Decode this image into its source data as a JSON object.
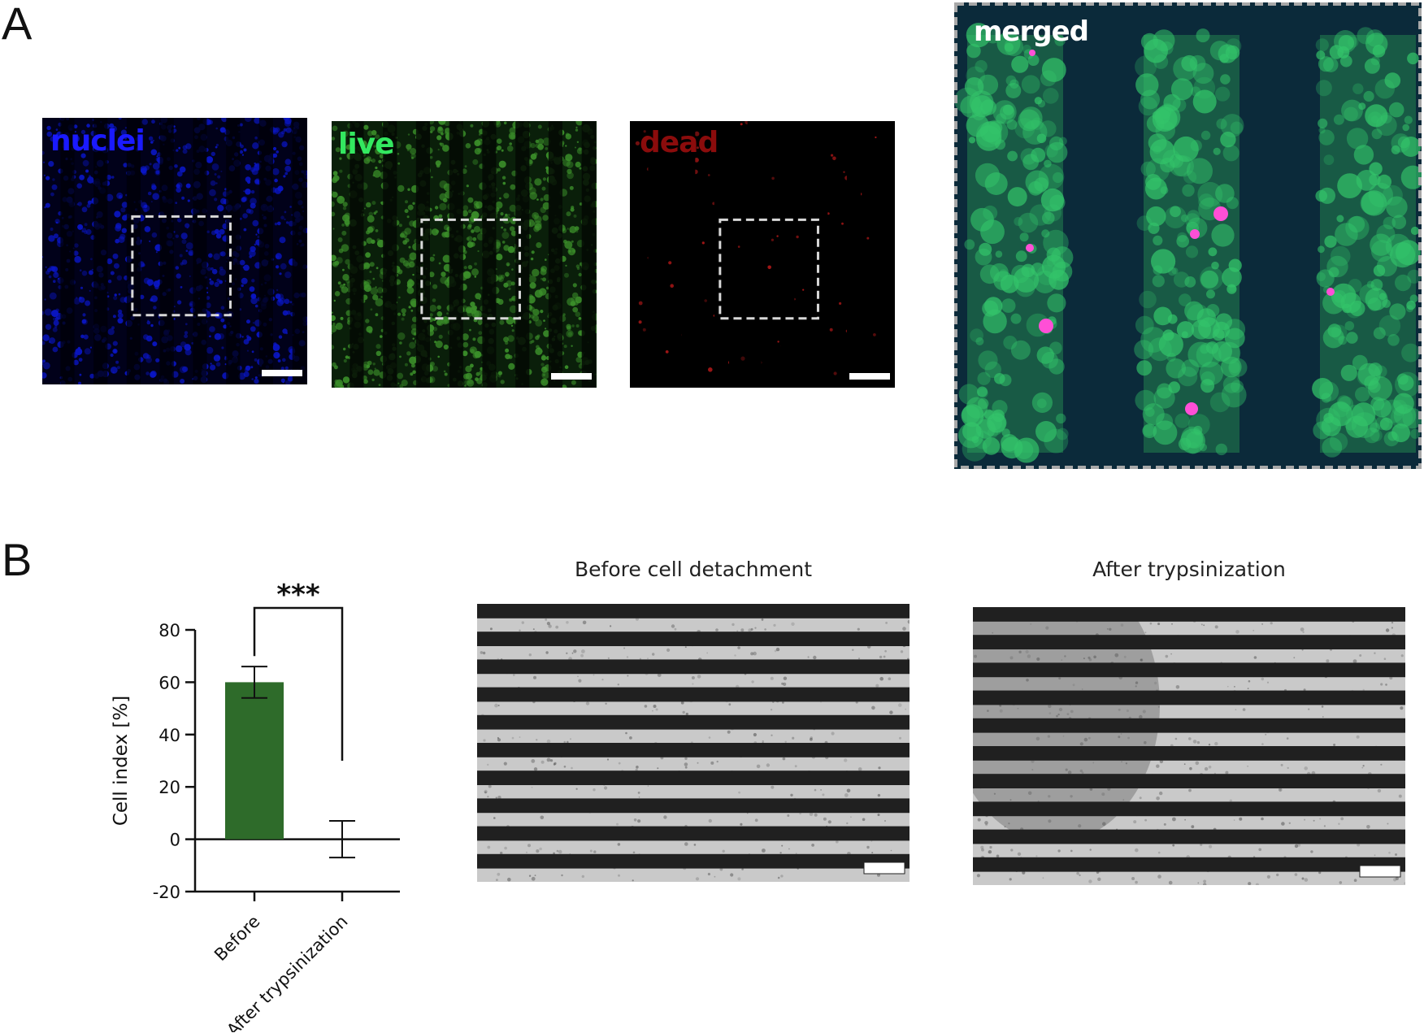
{
  "panels": {
    "a": {
      "letter": "A",
      "images": [
        {
          "label": "nuclei",
          "label_color": "#1a1aff",
          "bg": "#01011a",
          "cell_color": "#0a16c8",
          "stripe_color": "#000008"
        },
        {
          "label": "live",
          "label_color": "#33e860",
          "bg": "#0a1f0a",
          "cell_color": "#3b8f2a",
          "stripe_color": "#040904"
        },
        {
          "label": "dead",
          "label_color": "#8b0c0c",
          "bg": "#000000",
          "cell_color": "#b01818",
          "stripe_color": "#000000"
        }
      ],
      "merged": {
        "label": "merged",
        "label_color": "#ffffff"
      }
    },
    "b": {
      "letter": "B",
      "image_titles": [
        "Before cell detachment",
        "After trypsinization"
      ]
    }
  },
  "chart_data": {
    "type": "bar",
    "categories": [
      "Before",
      "After trypsinization"
    ],
    "values": [
      60,
      0
    ],
    "error": [
      6,
      7
    ],
    "ylabel": "Cell index [%]",
    "ylim": [
      -20,
      80
    ],
    "yticks": [
      -20,
      0,
      20,
      40,
      60,
      80
    ],
    "bar_color": "#2e6b2a",
    "significance": "***"
  }
}
